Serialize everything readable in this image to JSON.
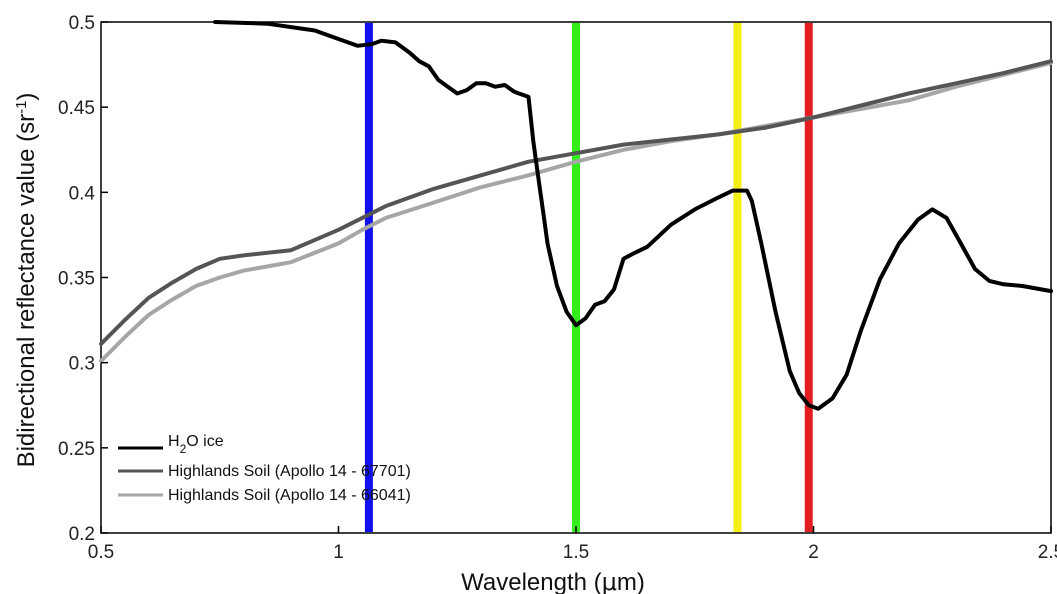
{
  "chart_data": {
    "type": "line",
    "xlabel": "Wavelength (μm)",
    "ylabel": "Bidirectional reflectance value (sr⁻¹)",
    "xlim": [
      0.5,
      2.5
    ],
    "ylim": [
      0.2,
      0.5
    ],
    "x_ticks": [
      "0.5",
      "1",
      "1.5",
      "2",
      "2.5"
    ],
    "x_tick_values": [
      0.5,
      1.0,
      1.5,
      2.0,
      2.5
    ],
    "y_ticks": [
      "0.2",
      "0.25",
      "0.3",
      "0.35",
      "0.4",
      "0.45",
      "0.5"
    ],
    "y_tick_values": [
      0.2,
      0.25,
      0.3,
      0.35,
      0.4,
      0.45,
      0.5
    ],
    "grid": false,
    "legend_position": "bottom-left",
    "series": [
      {
        "name": "H₂O ice",
        "color": "#000000",
        "x": [
          0.74,
          0.85,
          0.95,
          1.0,
          1.04,
          1.07,
          1.09,
          1.12,
          1.15,
          1.17,
          1.19,
          1.21,
          1.23,
          1.25,
          1.27,
          1.29,
          1.31,
          1.33,
          1.35,
          1.37,
          1.38,
          1.4,
          1.41,
          1.42,
          1.43,
          1.44,
          1.46,
          1.48,
          1.5,
          1.52,
          1.54,
          1.56,
          1.58,
          1.6,
          1.62,
          1.65,
          1.7,
          1.75,
          1.8,
          1.83,
          1.86,
          1.87,
          1.89,
          1.92,
          1.95,
          1.97,
          1.99,
          2.01,
          2.04,
          2.07,
          2.1,
          2.14,
          2.18,
          2.22,
          2.25,
          2.28,
          2.31,
          2.34,
          2.37,
          2.4,
          2.44,
          2.5
        ],
        "values": [
          0.5,
          0.499,
          0.495,
          0.49,
          0.486,
          0.487,
          0.489,
          0.488,
          0.482,
          0.477,
          0.474,
          0.466,
          0.462,
          0.458,
          0.46,
          0.464,
          0.464,
          0.462,
          0.463,
          0.459,
          0.458,
          0.456,
          0.43,
          0.41,
          0.39,
          0.37,
          0.345,
          0.33,
          0.322,
          0.326,
          0.334,
          0.336,
          0.343,
          0.361,
          0.364,
          0.368,
          0.381,
          0.39,
          0.397,
          0.401,
          0.401,
          0.395,
          0.37,
          0.33,
          0.295,
          0.282,
          0.275,
          0.273,
          0.279,
          0.293,
          0.319,
          0.349,
          0.37,
          0.384,
          0.39,
          0.385,
          0.37,
          0.355,
          0.348,
          0.346,
          0.345,
          0.342
        ]
      },
      {
        "name": "Highlands Soil (Apollo 14 - 67701)",
        "color": "#555555",
        "x": [
          0.5,
          0.55,
          0.6,
          0.65,
          0.7,
          0.75,
          0.8,
          0.9,
          1.0,
          1.05,
          1.1,
          1.2,
          1.3,
          1.4,
          1.5,
          1.6,
          1.7,
          1.8,
          1.9,
          2.0,
          2.1,
          2.2,
          2.3,
          2.4,
          2.5
        ],
        "values": [
          0.311,
          0.325,
          0.338,
          0.347,
          0.355,
          0.361,
          0.363,
          0.366,
          0.378,
          0.385,
          0.392,
          0.402,
          0.41,
          0.418,
          0.423,
          0.428,
          0.431,
          0.434,
          0.438,
          0.444,
          0.451,
          0.458,
          0.464,
          0.47,
          0.477
        ]
      },
      {
        "name": "Highlands Soil (Apollo 14 - 66041)",
        "color": "#a6a6a6",
        "x": [
          0.5,
          0.55,
          0.6,
          0.65,
          0.7,
          0.75,
          0.8,
          0.9,
          1.0,
          1.05,
          1.1,
          1.2,
          1.3,
          1.4,
          1.5,
          1.6,
          1.7,
          1.8,
          1.9,
          2.0,
          2.1,
          2.2,
          2.3,
          2.4,
          2.5
        ],
        "values": [
          0.301,
          0.315,
          0.328,
          0.337,
          0.345,
          0.35,
          0.354,
          0.359,
          0.37,
          0.378,
          0.385,
          0.394,
          0.403,
          0.41,
          0.418,
          0.425,
          0.43,
          0.434,
          0.439,
          0.444,
          0.449,
          0.454,
          0.462,
          0.469,
          0.476
        ]
      }
    ],
    "vertical_bands": [
      {
        "x": 1.064,
        "color": "#1010ee"
      },
      {
        "x": 1.5,
        "color": "#33ee1a"
      },
      {
        "x": 1.84,
        "color": "#f5ee14"
      },
      {
        "x": 1.99,
        "color": "#e21e22"
      }
    ]
  }
}
